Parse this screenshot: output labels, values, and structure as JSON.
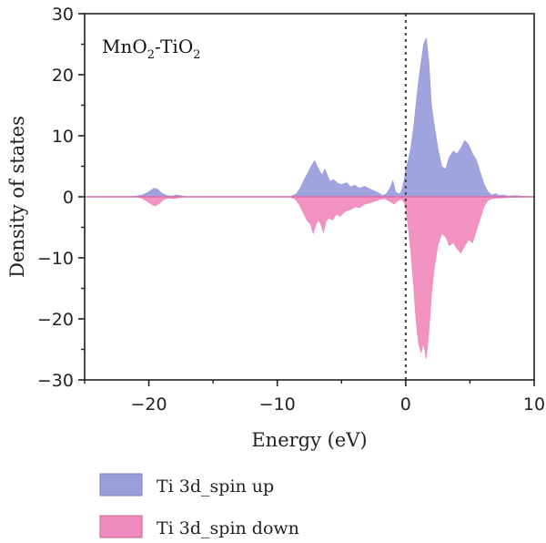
{
  "chart_data": {
    "type": "area",
    "xlabel": "Energy (eV)",
    "ylabel": "Density of states",
    "xlim": [
      -25,
      10
    ],
    "ylim": [
      -30,
      30
    ],
    "x_ticks": [
      -20,
      -10,
      0,
      10
    ],
    "y_ticks": [
      -30,
      -20,
      -10,
      0,
      10,
      20,
      30
    ],
    "x_tick_labels": [
      "−20",
      "−10",
      "0",
      "10"
    ],
    "y_tick_labels": [
      "−30",
      "−20",
      "−10",
      "0",
      "10",
      "20",
      "30"
    ],
    "annotation": {
      "main": "MnO",
      "sub1": "2",
      "mid": "-TiO",
      "sub2": "2",
      "full": "MnO2-TiO2"
    },
    "fermi_level": 0,
    "grid": false,
    "legend_placement": "bottom",
    "series": [
      {
        "name": "Ti 3d_spin up",
        "color": "#9a9fdc",
        "points": [
          [
            -25,
            0
          ],
          [
            -21.5,
            0
          ],
          [
            -21,
            0.1
          ],
          [
            -20.5,
            0.3
          ],
          [
            -20,
            0.8
          ],
          [
            -19.6,
            1.4
          ],
          [
            -19.3,
            1.2
          ],
          [
            -19,
            0.6
          ],
          [
            -18.6,
            0.2
          ],
          [
            -18.2,
            0.1
          ],
          [
            -17.8,
            0.3
          ],
          [
            -17.4,
            0.1
          ],
          [
            -17,
            0
          ],
          [
            -9,
            0
          ],
          [
            -8.5,
            0.5
          ],
          [
            -8.2,
            1.5
          ],
          [
            -7.9,
            2.8
          ],
          [
            -7.6,
            4
          ],
          [
            -7.3,
            5.2
          ],
          [
            -7.1,
            5.9
          ],
          [
            -6.9,
            5
          ],
          [
            -6.7,
            4.2
          ],
          [
            -6.5,
            3.5
          ],
          [
            -6.3,
            4.5
          ],
          [
            -6.1,
            3.5
          ],
          [
            -5.9,
            2.5
          ],
          [
            -5.6,
            2.8
          ],
          [
            -5.3,
            2.2
          ],
          [
            -5,
            2
          ],
          [
            -4.6,
            2.3
          ],
          [
            -4.3,
            1.6
          ],
          [
            -4,
            1.9
          ],
          [
            -3.6,
            1.4
          ],
          [
            -3.2,
            1.7
          ],
          [
            -2.8,
            1.3
          ],
          [
            -2.4,
            0.9
          ],
          [
            -2.1,
            0.6
          ],
          [
            -1.8,
            0.2
          ],
          [
            -1.5,
            0.5
          ],
          [
            -1.2,
            1.5
          ],
          [
            -1,
            2.6
          ],
          [
            -0.8,
            0.8
          ],
          [
            -0.5,
            0.4
          ],
          [
            -0.3,
            1
          ],
          [
            -0.1,
            3
          ],
          [
            0,
            4.5
          ],
          [
            0.2,
            6
          ],
          [
            0.4,
            8
          ],
          [
            0.6,
            11
          ],
          [
            0.8,
            15
          ],
          [
            1,
            19
          ],
          [
            1.2,
            22
          ],
          [
            1.4,
            25
          ],
          [
            1.6,
            26
          ],
          [
            1.8,
            22
          ],
          [
            2.0,
            15
          ],
          [
            2.2,
            12
          ],
          [
            2.5,
            8
          ],
          [
            2.8,
            5
          ],
          [
            3.1,
            4.5
          ],
          [
            3.4,
            6.5
          ],
          [
            3.7,
            7.5
          ],
          [
            4.0,
            7
          ],
          [
            4.3,
            8
          ],
          [
            4.6,
            9.2
          ],
          [
            4.9,
            8.5
          ],
          [
            5.2,
            7
          ],
          [
            5.5,
            6
          ],
          [
            5.8,
            4
          ],
          [
            6.1,
            2
          ],
          [
            6.4,
            0.8
          ],
          [
            6.7,
            0.3
          ],
          [
            7,
            0.5
          ],
          [
            7.3,
            0.2
          ],
          [
            7.6,
            0.3
          ],
          [
            8,
            0.1
          ],
          [
            8.5,
            0.2
          ],
          [
            9,
            0.1
          ],
          [
            10,
            0
          ]
        ]
      },
      {
        "name": "Ti 3d_spin down",
        "color": "#f08cbe",
        "points": [
          [
            -25,
            0
          ],
          [
            -21,
            0
          ],
          [
            -20.6,
            -0.2
          ],
          [
            -20.2,
            -0.6
          ],
          [
            -19.8,
            -1.2
          ],
          [
            -19.5,
            -1.5
          ],
          [
            -19.2,
            -1.1
          ],
          [
            -18.9,
            -0.5
          ],
          [
            -18.5,
            -0.2
          ],
          [
            -18,
            -0.3
          ],
          [
            -17.6,
            -0.1
          ],
          [
            -17,
            0
          ],
          [
            -9,
            0
          ],
          [
            -8.6,
            -0.4
          ],
          [
            -8.3,
            -1.2
          ],
          [
            -8.0,
            -2.5
          ],
          [
            -7.7,
            -3.8
          ],
          [
            -7.4,
            -4.5
          ],
          [
            -7.2,
            -6.0
          ],
          [
            -7.0,
            -4.5
          ],
          [
            -6.8,
            -3.8
          ],
          [
            -6.6,
            -4.5
          ],
          [
            -6.4,
            -5.8
          ],
          [
            -6.2,
            -4
          ],
          [
            -6.0,
            -3.5
          ],
          [
            -5.7,
            -3.8
          ],
          [
            -5.4,
            -2.8
          ],
          [
            -5.1,
            -3.2
          ],
          [
            -4.8,
            -2.5
          ],
          [
            -4.5,
            -2.2
          ],
          [
            -4.2,
            -2.0
          ],
          [
            -3.9,
            -1.6
          ],
          [
            -3.6,
            -1.8
          ],
          [
            -3.2,
            -1.2
          ],
          [
            -2.8,
            -1.0
          ],
          [
            -2.4,
            -0.7
          ],
          [
            -2.0,
            -0.4
          ],
          [
            -1.6,
            -0.3
          ],
          [
            -1.2,
            -0.8
          ],
          [
            -0.9,
            -1.2
          ],
          [
            -0.6,
            -0.6
          ],
          [
            -0.3,
            -0.4
          ],
          [
            -0.1,
            -1
          ],
          [
            0,
            -2
          ],
          [
            0.2,
            -5
          ],
          [
            0.4,
            -9
          ],
          [
            0.6,
            -14
          ],
          [
            0.8,
            -20
          ],
          [
            1.0,
            -24
          ],
          [
            1.2,
            -25.5
          ],
          [
            1.4,
            -24
          ],
          [
            1.6,
            -26.5
          ],
          [
            1.8,
            -22
          ],
          [
            2.0,
            -16
          ],
          [
            2.2,
            -12
          ],
          [
            2.5,
            -8
          ],
          [
            2.8,
            -6
          ],
          [
            3.1,
            -6.5
          ],
          [
            3.4,
            -8
          ],
          [
            3.7,
            -7.5
          ],
          [
            4.0,
            -8.5
          ],
          [
            4.3,
            -9.2
          ],
          [
            4.6,
            -8
          ],
          [
            4.9,
            -7
          ],
          [
            5.2,
            -7.5
          ],
          [
            5.5,
            -5.5
          ],
          [
            5.8,
            -3.5
          ],
          [
            6.1,
            -1.5
          ],
          [
            6.4,
            -0.6
          ],
          [
            6.7,
            -0.3
          ],
          [
            7.2,
            -0.2
          ],
          [
            8,
            -0.1
          ],
          [
            10,
            0
          ]
        ]
      }
    ]
  }
}
